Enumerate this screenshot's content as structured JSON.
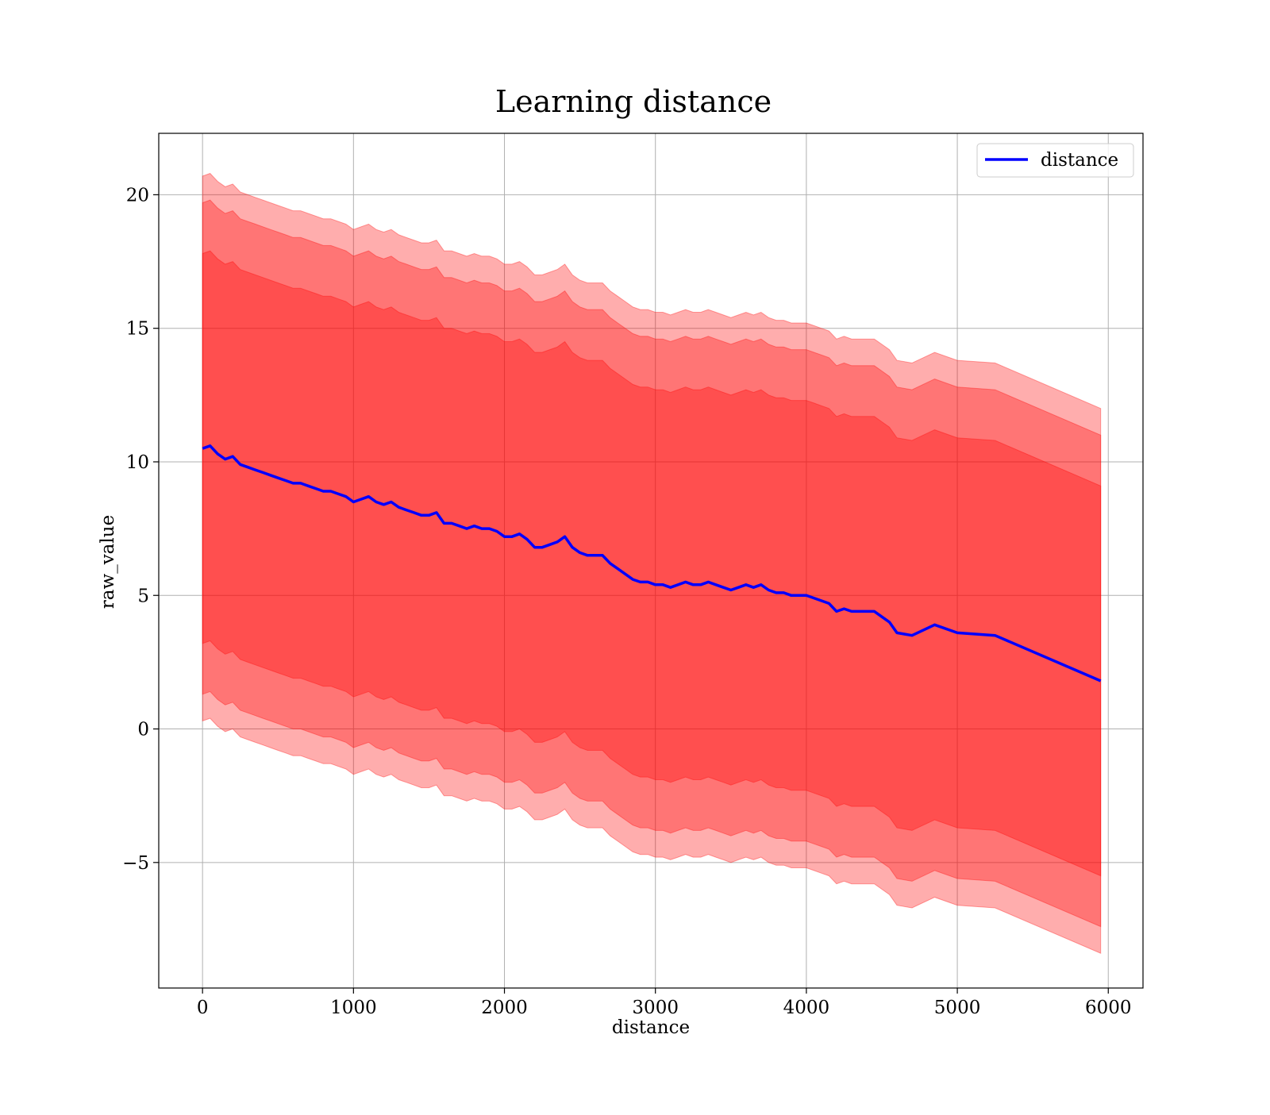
{
  "chart_data": {
    "type": "line",
    "title": "Learning distance",
    "xlabel": "distance",
    "ylabel": "raw_value",
    "xlim": [
      -290,
      6230
    ],
    "ylim": [
      -9.7,
      22.3
    ],
    "xticks": [
      0,
      1000,
      2000,
      3000,
      4000,
      5000,
      6000
    ],
    "xtick_labels": [
      "0",
      "1000",
      "2000",
      "3000",
      "4000",
      "5000",
      "6000"
    ],
    "yticks": [
      -5,
      0,
      5,
      10,
      15,
      20
    ],
    "ytick_labels": [
      "−5",
      "0",
      "5",
      "10",
      "15",
      "20"
    ],
    "grid": true,
    "legend": {
      "position": "top-right",
      "entries": [
        "distance"
      ]
    },
    "colors": {
      "line": "#0000ff",
      "band": "#ff0000",
      "grid": "#b0b0b0",
      "axes": "#000000"
    },
    "series": [
      {
        "name": "distance",
        "x": [
          0,
          50,
          100,
          150,
          200,
          250,
          300,
          350,
          400,
          450,
          500,
          550,
          600,
          650,
          700,
          750,
          800,
          850,
          900,
          950,
          1000,
          1050,
          1100,
          1150,
          1200,
          1250,
          1300,
          1350,
          1400,
          1450,
          1500,
          1550,
          1600,
          1650,
          1700,
          1750,
          1800,
          1850,
          1900,
          1950,
          2000,
          2050,
          2100,
          2150,
          2200,
          2250,
          2300,
          2350,
          2400,
          2450,
          2500,
          2550,
          2600,
          2650,
          2700,
          2750,
          2800,
          2850,
          2900,
          2950,
          3000,
          3050,
          3100,
          3150,
          3200,
          3250,
          3300,
          3350,
          3400,
          3450,
          3500,
          3550,
          3600,
          3650,
          3700,
          3750,
          3800,
          3850,
          3900,
          3950,
          4000,
          4050,
          4100,
          4150,
          4200,
          4250,
          4300,
          4350,
          4400,
          4450,
          4500,
          4550,
          4600,
          4700,
          4850,
          5000,
          5250,
          5950
        ],
        "y": [
          10.5,
          10.6,
          10.3,
          10.1,
          10.2,
          9.9,
          9.8,
          9.7,
          9.6,
          9.5,
          9.4,
          9.3,
          9.2,
          9.2,
          9.1,
          9.0,
          8.9,
          8.9,
          8.8,
          8.7,
          8.5,
          8.6,
          8.7,
          8.5,
          8.4,
          8.5,
          8.3,
          8.2,
          8.1,
          8.0,
          8.0,
          8.1,
          7.7,
          7.7,
          7.6,
          7.5,
          7.6,
          7.5,
          7.5,
          7.4,
          7.2,
          7.2,
          7.3,
          7.1,
          6.8,
          6.8,
          6.9,
          7.0,
          7.2,
          6.8,
          6.6,
          6.5,
          6.5,
          6.5,
          6.2,
          6.0,
          5.8,
          5.6,
          5.5,
          5.5,
          5.4,
          5.4,
          5.3,
          5.4,
          5.5,
          5.4,
          5.4,
          5.5,
          5.4,
          5.3,
          5.2,
          5.3,
          5.4,
          5.3,
          5.4,
          5.2,
          5.1,
          5.1,
          5.0,
          5.0,
          5.0,
          4.9,
          4.8,
          4.7,
          4.4,
          4.5,
          4.4,
          4.4,
          4.4,
          4.4,
          4.2,
          4.0,
          3.6,
          3.5,
          3.9,
          3.6,
          3.5,
          1.8
        ],
        "bands": [
          {
            "sigma": 1,
            "lower_offset": -7.3,
            "upper_offset": 7.3
          },
          {
            "sigma": 2,
            "lower_offset": -9.2,
            "upper_offset": 9.2
          },
          {
            "sigma": 3,
            "lower_offset": -10.2,
            "upper_offset": 10.2
          }
        ]
      }
    ]
  }
}
